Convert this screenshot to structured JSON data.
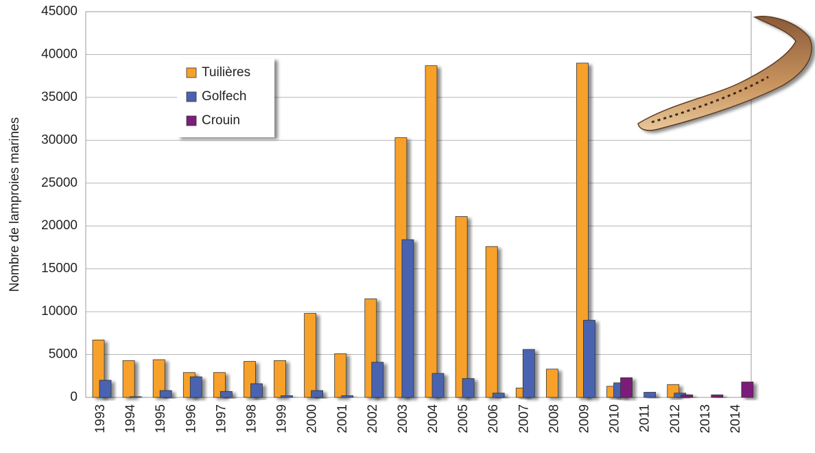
{
  "chart_data": {
    "type": "bar",
    "y_label": "Nombre de lamproies marines",
    "categories": [
      "1993",
      "1994",
      "1995",
      "1996",
      "1997",
      "1998",
      "1999",
      "2000",
      "2001",
      "2002",
      "2003",
      "2004",
      "2005",
      "2006",
      "2007",
      "2008",
      "2009",
      "2010",
      "2011",
      "2012",
      "2013",
      "2014"
    ],
    "series": [
      {
        "name": "Tuilières",
        "color": "#f7a12a",
        "values": [
          6700,
          4300,
          4400,
          2900,
          2900,
          4200,
          4300,
          9800,
          5100,
          11500,
          30300,
          38700,
          21100,
          17600,
          1100,
          3300,
          39000,
          1300,
          0,
          1500,
          0,
          0
        ]
      },
      {
        "name": "Golfech",
        "color": "#4a63b0",
        "values": [
          2000,
          100,
          800,
          2400,
          700,
          1600,
          200,
          800,
          200,
          4100,
          18400,
          2800,
          2200,
          500,
          5600,
          0,
          9000,
          1700,
          600,
          500,
          0,
          0
        ]
      },
      {
        "name": "Crouin",
        "color": "#7b1f7a",
        "values": [
          null,
          null,
          null,
          null,
          null,
          null,
          null,
          null,
          null,
          null,
          null,
          null,
          null,
          null,
          null,
          null,
          null,
          2300,
          0,
          300,
          300,
          1800
        ]
      }
    ],
    "ylim": [
      0,
      45000
    ],
    "yticks": [
      0,
      5000,
      10000,
      15000,
      20000,
      25000,
      30000,
      35000,
      40000,
      45000
    ],
    "grid": true,
    "legend": "top-left"
  }
}
